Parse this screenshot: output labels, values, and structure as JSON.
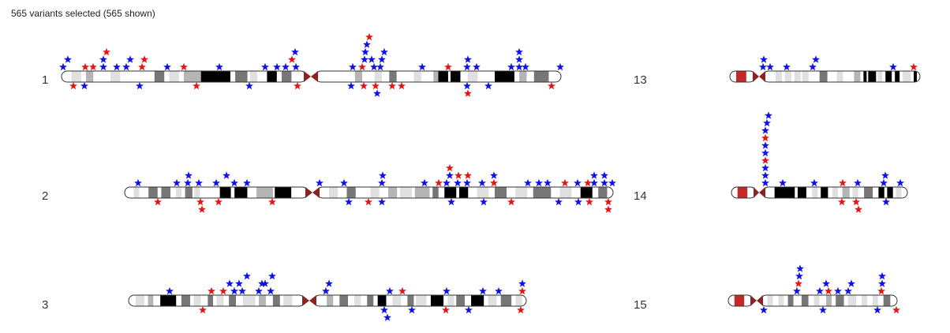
{
  "header": {
    "status_text": "565 variants selected (565 shown)"
  },
  "colors": {
    "gneg": "#ffffff",
    "gpos25": "#e0e0e0",
    "gpos50": "#b5b5b5",
    "gpos75": "#777777",
    "gpos100": "#000000",
    "centromere": "#8b2323",
    "acen_p": "#c62828",
    "outline": "#333333",
    "variant_blue": "#1010e8",
    "variant_red": "#e81414"
  },
  "chromosomes": [
    {
      "name": "1",
      "column": "left",
      "row": 0
    },
    {
      "name": "2",
      "column": "left",
      "row": 1
    },
    {
      "name": "3",
      "column": "left",
      "row": 2
    },
    {
      "name": "13",
      "column": "right",
      "row": 0
    },
    {
      "name": "14",
      "column": "right",
      "row": 1
    },
    {
      "name": "15",
      "column": "right",
      "row": 2
    }
  ]
}
